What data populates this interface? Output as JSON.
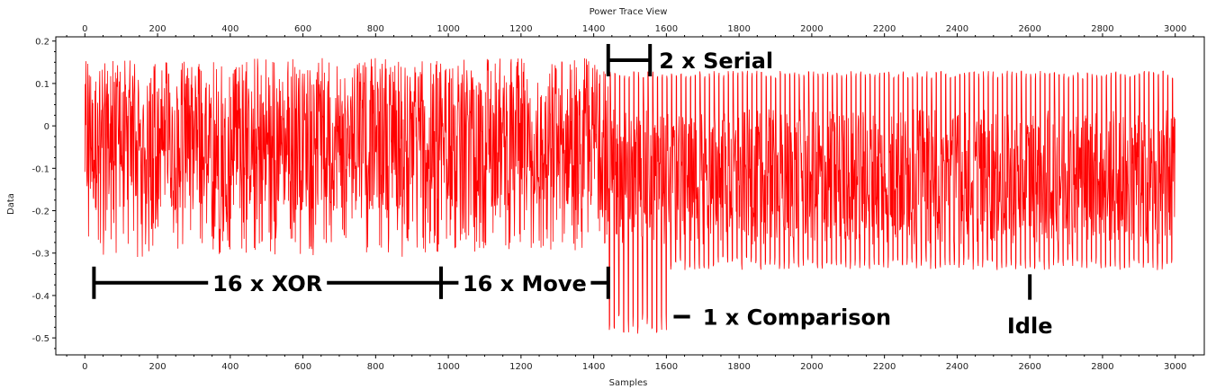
{
  "chart_data": {
    "type": "line",
    "title": "Power Trace View",
    "xlabel": "Samples",
    "ylabel": "Data",
    "xlim": [
      -80,
      3080
    ],
    "ylim": [
      -0.54,
      0.21
    ],
    "x_ticks": [
      0,
      200,
      400,
      600,
      800,
      1000,
      1200,
      1400,
      1600,
      1800,
      2000,
      2200,
      2400,
      2600,
      2800,
      3000
    ],
    "y_ticks": [
      0.2,
      0.1,
      0,
      -0.1,
      -0.2,
      -0.3,
      -0.4,
      -0.5
    ],
    "y_tick_labels": [
      "0.2",
      "0.1",
      "0",
      "-0.1",
      "-0.2",
      "-0.3",
      "-0.4",
      "-0.5"
    ],
    "top_axis": true,
    "grid": false,
    "series": [
      {
        "color": "#ff0000",
        "x_range": [
          0,
          3000
        ],
        "segments": [
          {
            "x": [
              0,
              980
            ],
            "min": -0.31,
            "max": 0.16
          },
          {
            "x": [
              980,
              1440
            ],
            "min": -0.3,
            "max": 0.16
          },
          {
            "x": [
              1440,
              1600
            ],
            "min": -0.49,
            "max": 0.13
          },
          {
            "x": [
              1600,
              3000
            ],
            "min": -0.34,
            "max": 0.13
          }
        ]
      }
    ],
    "annotations": [
      {
        "text": "16 x XOR",
        "x_start": 25,
        "x_end": 980,
        "y": -0.37
      },
      {
        "text": "16 x Move",
        "x_start": 980,
        "x_end": 1440,
        "y": -0.37
      },
      {
        "text": "2 x Serial",
        "x_start": 1440,
        "x_end": 1555,
        "y": 0.155
      },
      {
        "text": "1 x Comparison",
        "x": 1700,
        "y": -0.45
      },
      {
        "text": "Idle",
        "x": 2600,
        "y": -0.46
      }
    ]
  }
}
